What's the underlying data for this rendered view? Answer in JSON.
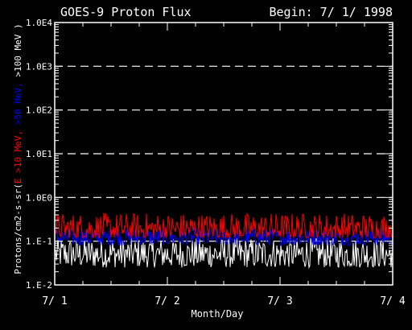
{
  "chart_data": {
    "type": "line",
    "title": "GOES-9 Proton Flux",
    "begin_label": "Begin: 7/ 1/ 1998",
    "xlabel": "Month/Day",
    "ylabel_parts": [
      {
        "text": "Protons/cm2-s-sr(",
        "color": "#ffffff"
      },
      {
        "text": "E >10 MeV, ",
        "color": "#ff0000"
      },
      {
        "text": ">50 MeV, ",
        "color": "#0000ff"
      },
      {
        "text": ">100 MeV )",
        "color": "#ffffff"
      }
    ],
    "y_scale": "log",
    "ylim": [
      0.01,
      10000
    ],
    "y_tick_labels": [
      "1.E-2",
      "1.E-1",
      "1.0E0",
      "1.0E1",
      "1.0E2",
      "1.0E3",
      "1.0E4"
    ],
    "y_tick_values": [
      0.01,
      0.1,
      1,
      10,
      100,
      1000,
      10000
    ],
    "grid": "dashed horizontal at decades",
    "xlim": [
      "7/1",
      "7/4"
    ],
    "x_tick_labels": [
      "7/ 1",
      "7/ 2",
      "7/ 3",
      "7/ 4"
    ],
    "series": [
      {
        "name": "E >10 MeV",
        "color": "#ff0000",
        "typical_range": [
          0.12,
          0.45
        ]
      },
      {
        "name": ">50 MeV",
        "color": "#0000ff",
        "typical_range": [
          0.08,
          0.2
        ]
      },
      {
        "name": ">100 MeV",
        "color": "#ffffff",
        "typical_range": [
          0.025,
          0.12
        ]
      }
    ]
  }
}
